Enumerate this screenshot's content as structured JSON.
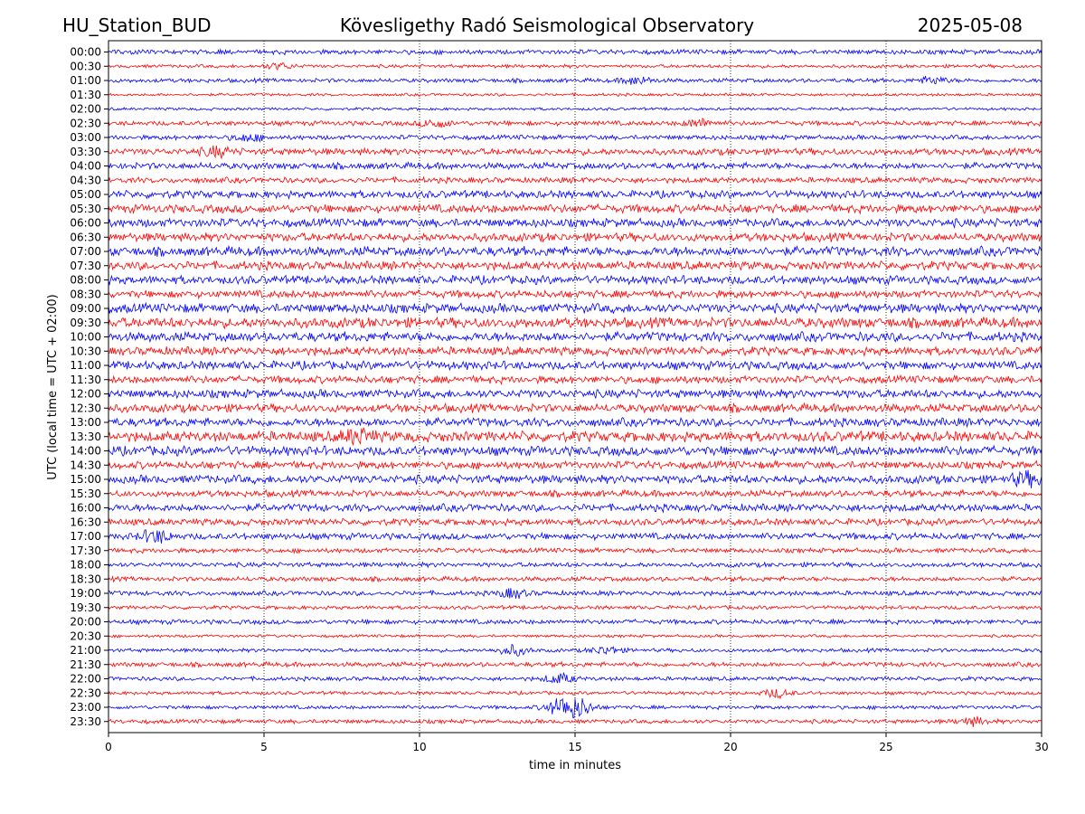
{
  "header": {
    "station": "HU_Station_BUD",
    "observatory": "Kövesligethy Radó Seismological Observatory",
    "date": "2025-05-08"
  },
  "chart_data": {
    "type": "line",
    "title": "Kövesligethy Radó Seismological Observatory",
    "xlabel": "time in minutes",
    "ylabel": "UTC (local time = UTC + 02:00)",
    "xlim": [
      0,
      30
    ],
    "x_ticks": [
      0,
      5,
      10,
      15,
      20,
      25,
      30
    ],
    "grid": "vertical dotted",
    "trace_colors": [
      "#0000ff",
      "#ff0000"
    ],
    "rows": [
      "00:00",
      "00:30",
      "01:00",
      "01:30",
      "02:00",
      "02:30",
      "03:00",
      "03:30",
      "04:00",
      "04:30",
      "05:00",
      "05:30",
      "06:00",
      "06:30",
      "07:00",
      "07:30",
      "08:00",
      "08:30",
      "09:00",
      "09:30",
      "10:00",
      "10:30",
      "11:00",
      "11:30",
      "12:00",
      "12:30",
      "13:00",
      "13:30",
      "14:00",
      "14:30",
      "15:00",
      "15:30",
      "16:00",
      "16:30",
      "17:00",
      "17:30",
      "18:00",
      "18:30",
      "19:00",
      "19:30",
      "20:00",
      "20:30",
      "21:00",
      "21:30",
      "22:00",
      "22:30",
      "23:00",
      "23:30"
    ],
    "amplitude": [
      0.25,
      0.18,
      0.22,
      0.15,
      0.15,
      0.25,
      0.25,
      0.35,
      0.35,
      0.3,
      0.4,
      0.45,
      0.45,
      0.45,
      0.5,
      0.45,
      0.45,
      0.4,
      0.5,
      0.55,
      0.5,
      0.45,
      0.45,
      0.4,
      0.45,
      0.45,
      0.45,
      0.55,
      0.5,
      0.4,
      0.45,
      0.35,
      0.4,
      0.35,
      0.35,
      0.25,
      0.25,
      0.25,
      0.25,
      0.2,
      0.25,
      0.15,
      0.2,
      0.25,
      0.22,
      0.18,
      0.2,
      0.22
    ],
    "events": [
      {
        "row": "00:30",
        "t": 5.5,
        "amp": 0.35
      },
      {
        "row": "01:00",
        "t": 17.0,
        "amp": 0.45
      },
      {
        "row": "01:00",
        "t": 26.5,
        "amp": 0.4
      },
      {
        "row": "02:30",
        "t": 10.5,
        "amp": 0.45
      },
      {
        "row": "02:30",
        "t": 19.0,
        "amp": 0.45
      },
      {
        "row": "03:00",
        "t": 4.5,
        "amp": 0.4
      },
      {
        "row": "03:30",
        "t": 3.5,
        "amp": 0.5
      },
      {
        "row": "13:30",
        "t": 8.0,
        "amp": 0.75
      },
      {
        "row": "15:00",
        "t": 29.5,
        "amp": 0.7
      },
      {
        "row": "17:00",
        "t": 1.5,
        "amp": 0.7
      },
      {
        "row": "19:00",
        "t": 13.0,
        "amp": 0.5
      },
      {
        "row": "21:00",
        "t": 13.0,
        "amp": 0.6
      },
      {
        "row": "21:00",
        "t": 16.0,
        "amp": 0.45
      },
      {
        "row": "22:00",
        "t": 14.5,
        "amp": 0.55
      },
      {
        "row": "22:30",
        "t": 21.5,
        "amp": 0.5
      },
      {
        "row": "23:00",
        "t": 14.5,
        "amp": 0.9
      },
      {
        "row": "23:00",
        "t": 15.1,
        "amp": 1.1
      },
      {
        "row": "23:30",
        "t": 27.8,
        "amp": 0.45
      }
    ]
  }
}
